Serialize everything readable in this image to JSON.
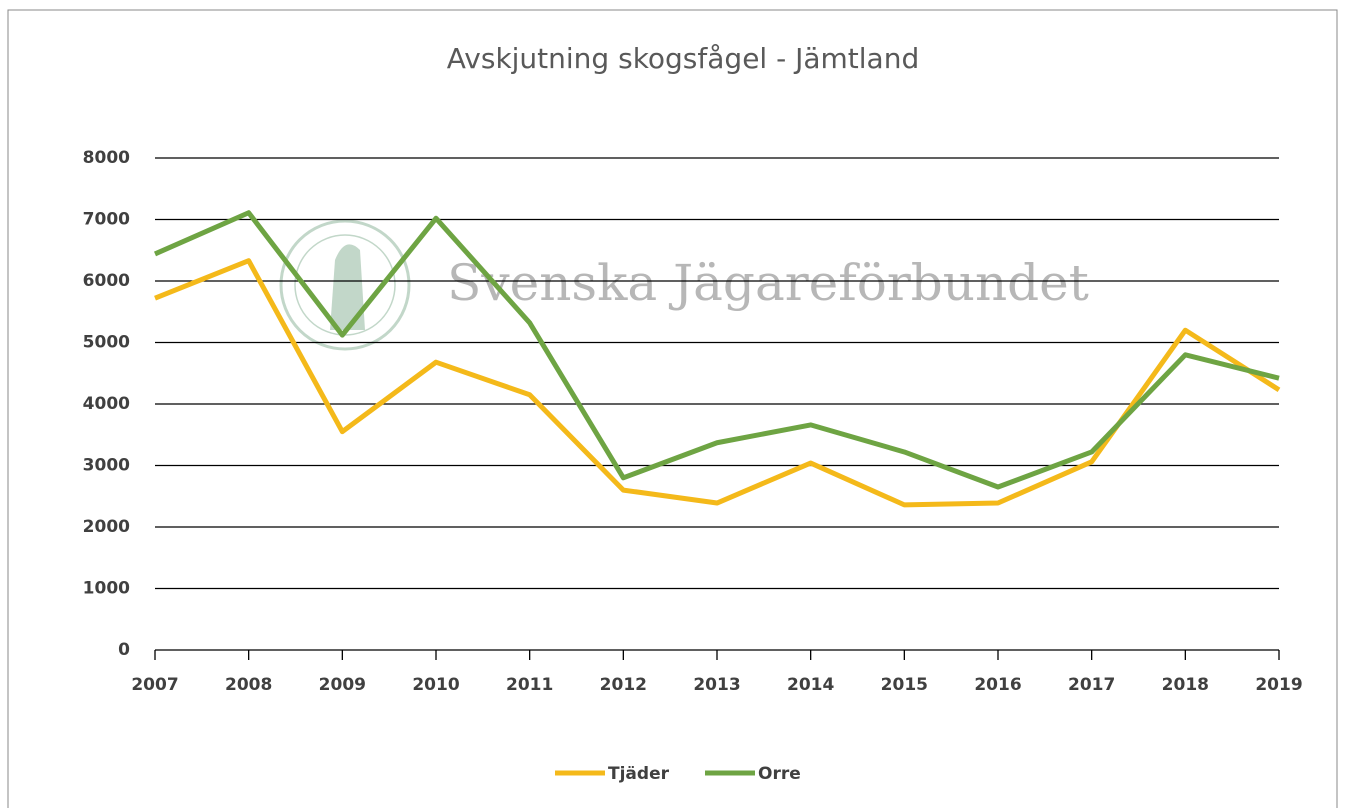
{
  "chart_data": {
    "type": "line",
    "title": "Avskjutning skogsfågel - Jämtland",
    "watermark": "Svenska Jägareförbundet",
    "categories": [
      "2007",
      "2008",
      "2009",
      "2010",
      "2011",
      "2012",
      "2013",
      "2014",
      "2015",
      "2016",
      "2017",
      "2018",
      "2019"
    ],
    "series": [
      {
        "name": "Tjäder",
        "color": "#f4b91a",
        "values": [
          5720,
          6330,
          3550,
          4680,
          4150,
          2600,
          2390,
          3040,
          2360,
          2390,
          3060,
          5200,
          4230
        ]
      },
      {
        "name": "Orre",
        "color": "#6ea443",
        "values": [
          6440,
          7110,
          5120,
          7020,
          5320,
          2800,
          3370,
          3660,
          3220,
          2650,
          3220,
          4800,
          4420
        ]
      }
    ],
    "ylim": [
      0,
      8000
    ],
    "yticks": [
      0,
      1000,
      2000,
      3000,
      4000,
      5000,
      6000,
      7000,
      8000
    ],
    "grid": true,
    "legend": "bottom"
  }
}
